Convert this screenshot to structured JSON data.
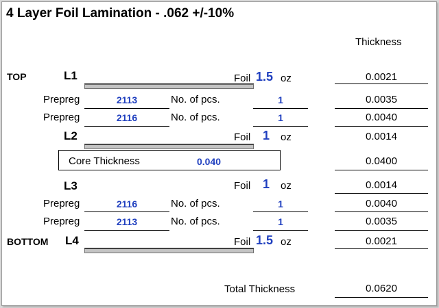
{
  "title": "4 Layer Foil Lamination - .062 +/-10%",
  "thickness_header": "Thickness",
  "side_labels": {
    "top": "TOP",
    "bottom": "BOTTOM"
  },
  "layers": {
    "l1": {
      "name": "L1",
      "foil_label": "Foil",
      "oz": "1.5",
      "unit": "oz",
      "thickness": "0.0021"
    },
    "l2": {
      "name": "L2",
      "foil_label": "Foil",
      "oz": "1",
      "unit": "oz",
      "thickness": "0.0014"
    },
    "l3": {
      "name": "L3",
      "foil_label": "Foil",
      "oz": "1",
      "unit": "oz",
      "thickness": "0.0014"
    },
    "l4": {
      "name": "L4",
      "foil_label": "Foil",
      "oz": "1.5",
      "unit": "oz",
      "thickness": "0.0021"
    }
  },
  "prepreg": [
    {
      "label": "Prepreg",
      "type": "2113",
      "pcs_label": "No. of pcs.",
      "pcs": "1",
      "thickness": "0.0035"
    },
    {
      "label": "Prepreg",
      "type": "2116",
      "pcs_label": "No. of pcs.",
      "pcs": "1",
      "thickness": "0.0040"
    },
    {
      "label": "Prepreg",
      "type": "2116",
      "pcs_label": "No. of pcs.",
      "pcs": "1",
      "thickness": "0.0040"
    },
    {
      "label": "Prepreg",
      "type": "2113",
      "pcs_label": "No. of pcs.",
      "pcs": "1",
      "thickness": "0.0035"
    }
  ],
  "core": {
    "label": "Core Thickness",
    "value": "0.040",
    "thickness": "0.0400"
  },
  "total": {
    "label": "Total Thickness",
    "value": "0.0620"
  },
  "colors": {
    "value_blue": "#1f3fbf",
    "foil_bar": "#c4c4c4"
  }
}
